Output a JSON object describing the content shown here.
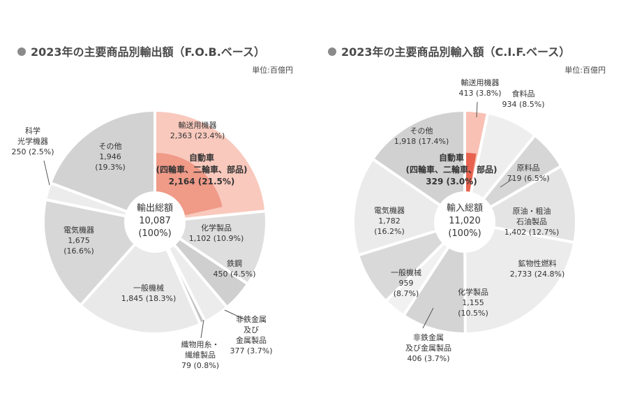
{
  "chart_data": [
    {
      "type": "pie",
      "title": "2023年の主要商品別輸出額（F.O.B.ベース）",
      "unit": "単位:百億円",
      "center": {
        "label": "輸出総額",
        "value": "10,087",
        "pct": "(100%)"
      },
      "slices": [
        {
          "name": "輸送用機器",
          "value": 2363,
          "label_lines": [
            "輸送用機器",
            "2,363 (23.4%)"
          ],
          "color": "#f9c9bd"
        },
        {
          "name": "化学製品",
          "value": 1102,
          "label_lines": [
            "化学製品",
            "1,102 (10.9%)"
          ],
          "color": "#dedede"
        },
        {
          "name": "鉄鋼",
          "value": 450,
          "label_lines": [
            "鉄鋼",
            "450 (4.5%)"
          ],
          "color": "#cfcfcf"
        },
        {
          "name": "非鉄金属及び金属製品",
          "value": 377,
          "label_lines": [
            "非鉄金属",
            "及び",
            "金属製品",
            "377 (3.7%)"
          ],
          "color": "#ececec"
        },
        {
          "name": "織物用糸・繊維製品",
          "value": 79,
          "label_lines": [
            "織物用糸・",
            "繊維製品",
            "79 (0.8%)"
          ],
          "color": "#c4c4c4"
        },
        {
          "name": "一般機械",
          "value": 1845,
          "label_lines": [
            "一般機械",
            "1,845 (18.3%)"
          ],
          "color": "#e9e9e9"
        },
        {
          "name": "電気機器",
          "value": 1675,
          "label_lines": [
            "電気機器",
            "1,675",
            "(16.6%)"
          ],
          "color": "#d7d7d7"
        },
        {
          "name": "科学光学機器",
          "value": 250,
          "label_lines": [
            "科学",
            "光学機器",
            "250 (2.5%)"
          ],
          "color": "#ececec"
        },
        {
          "name": "その他",
          "value": 1946,
          "label_lines": [
            "その他",
            "1,946",
            "(19.3%)"
          ],
          "color": "#d2d2d2"
        }
      ],
      "highlight": {
        "name": "自動車",
        "value": 2164,
        "label_lines": [
          "自動車",
          "(四輪車、二輪車、部品)",
          "2,164 (21.5%)"
        ],
        "color": "#f09a88"
      }
    },
    {
      "type": "pie",
      "title": "2023年の主要商品別輸入額（C.I.F.ベース）",
      "unit": "単位:百億円",
      "center": {
        "label": "輸入総額",
        "value": "11,020",
        "pct": "(100%)"
      },
      "slices": [
        {
          "name": "輸送用機器",
          "value": 413,
          "label_lines": [
            "輸送用機器",
            "413 (3.8%)"
          ],
          "color": "#f9c0b4"
        },
        {
          "name": "食料品",
          "value": 934,
          "label_lines": [
            "食料品",
            "934 (8.5%)"
          ],
          "color": "#eeeeee"
        },
        {
          "name": "原料品",
          "value": 719,
          "label_lines": [
            "原料品",
            "719 (6.5%)"
          ],
          "color": "#d6d6d6"
        },
        {
          "name": "原油・粗油石油製品",
          "value": 1402,
          "label_lines": [
            "原油・粗油",
            "石油製品",
            "1,402 (12.7%)"
          ],
          "color": "#e4e4e4"
        },
        {
          "name": "鉱物性燃料",
          "value": 2733,
          "label_lines": [
            "鉱物性燃料",
            "2,733 (24.8%)"
          ],
          "color": "#ececec"
        },
        {
          "name": "化学製品",
          "value": 1155,
          "label_lines": [
            "化学製品",
            "1,155",
            "(10.5%)"
          ],
          "color": "#d4d4d4"
        },
        {
          "name": "非鉄金属及び金属製品",
          "value": 406,
          "label_lines": [
            "非鉄金属",
            "及び金属製品",
            "406 (3.7%)"
          ],
          "color": "#f1f1f1"
        },
        {
          "name": "一般機械",
          "value": 959,
          "label_lines": [
            "一般機械",
            "959",
            "(8.7%)"
          ],
          "color": "#d9d9d9"
        },
        {
          "name": "電気機器",
          "value": 1782,
          "label_lines": [
            "電気機器",
            "1,782",
            "(16.2%)"
          ],
          "color": "#ebebeb"
        },
        {
          "name": "その他",
          "value": 1918,
          "label_lines": [
            "その他",
            "1,918 (17.4%)"
          ],
          "color": "#d1d1d1"
        }
      ],
      "highlight": {
        "name": "自動車",
        "value": 329,
        "label_lines": [
          "自動車",
          "(四輪車、二輪車、部品)",
          "329 (3.0%)"
        ],
        "color": "#e8634f"
      }
    }
  ]
}
